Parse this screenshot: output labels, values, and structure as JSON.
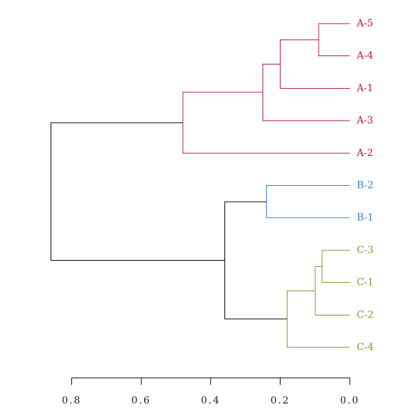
{
  "chart_data": {
    "type": "dendrogram",
    "orientation": "horizontal",
    "xlim": [
      0.0,
      0.8
    ],
    "x_ticks": [
      0.8,
      0.6,
      0.4,
      0.2,
      0.0
    ],
    "x_tick_labels": [
      "0.8",
      "0.6",
      "0.4",
      "0.2",
      "0.0"
    ],
    "leaves": [
      {
        "label": "A-5",
        "cluster": "A"
      },
      {
        "label": "A-4",
        "cluster": "A"
      },
      {
        "label": "A-1",
        "cluster": "A"
      },
      {
        "label": "A-3",
        "cluster": "A"
      },
      {
        "label": "A-2",
        "cluster": "A"
      },
      {
        "label": "B-2",
        "cluster": "B"
      },
      {
        "label": "B-1",
        "cluster": "B"
      },
      {
        "label": "C-3",
        "cluster": "C"
      },
      {
        "label": "C-1",
        "cluster": "C"
      },
      {
        "label": "C-2",
        "cluster": "C"
      },
      {
        "label": "C-4",
        "cluster": "C"
      }
    ],
    "merges": [
      {
        "id": "m1",
        "children": [
          "A-5",
          "A-4"
        ],
        "height": 0.09,
        "color": "#b5164b"
      },
      {
        "id": "m2",
        "children": [
          "m1",
          "A-1"
        ],
        "height": 0.2,
        "color": "#b5164b"
      },
      {
        "id": "m3",
        "children": [
          "m2",
          "A-3"
        ],
        "height": 0.25,
        "color": "#b5164b"
      },
      {
        "id": "m4",
        "children": [
          "m3",
          "A-2"
        ],
        "height": 0.48,
        "color": "#b5164b"
      },
      {
        "id": "m5",
        "children": [
          "B-2",
          "B-1"
        ],
        "height": 0.24,
        "color": "#3a7fc4"
      },
      {
        "id": "m6",
        "children": [
          "C-3",
          "C-1"
        ],
        "height": 0.08,
        "color": "#7a9a2e"
      },
      {
        "id": "m7",
        "children": [
          "m6",
          "C-2"
        ],
        "height": 0.1,
        "color": "#7a9a2e"
      },
      {
        "id": "m8",
        "children": [
          "m7",
          "C-4"
        ],
        "height": 0.18,
        "color": "#7a9a2e"
      },
      {
        "id": "m9",
        "children": [
          "m5",
          "m8"
        ],
        "height": 0.36,
        "color": "#000000"
      },
      {
        "id": "m10",
        "children": [
          "m4",
          "m9"
        ],
        "height": 0.86,
        "color": "#000000"
      }
    ],
    "cluster_colors": {
      "A": "#b5164b",
      "B": "#3a7fc4",
      "C": "#7a9a2e"
    }
  }
}
